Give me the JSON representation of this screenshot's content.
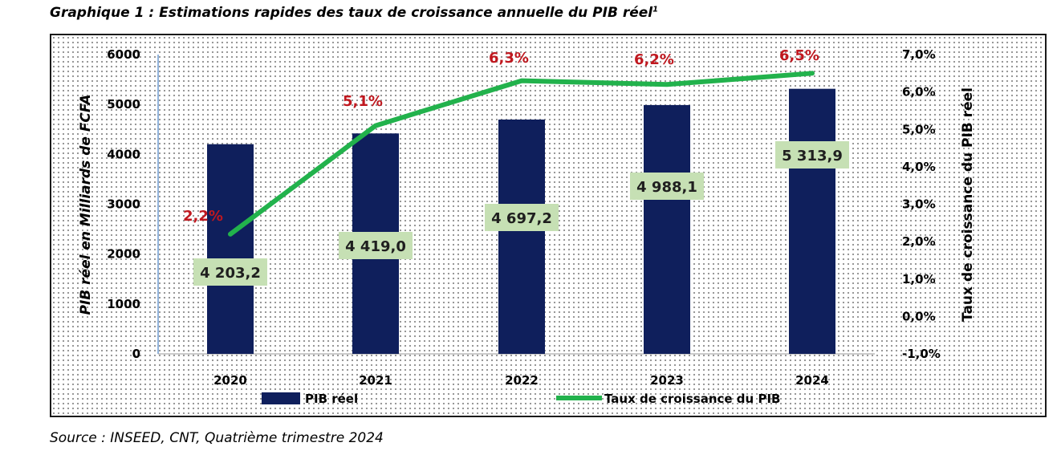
{
  "title": "Graphique 1 : Estimations rapides des taux de croissance annuelle du PIB réel",
  "title_footnote": "1",
  "source": "Source : INSEED, CNT, Quatrième trimestre 2024",
  "colors": {
    "bar": "#0f1f5c",
    "line": "#22b24c",
    "rate_label": "#c0181f",
    "value_box": "#c6e0b4"
  },
  "chart_data": {
    "type": "bar",
    "categories": [
      "2020",
      "2021",
      "2022",
      "2023",
      "2024"
    ],
    "series": [
      {
        "name": "PIB réel",
        "type": "bar",
        "axis": "left",
        "values": [
          4203.2,
          4419.0,
          4697.2,
          4988.1,
          5313.9
        ],
        "labels": [
          "4 203,2",
          "4 419,0",
          "4 697,2",
          "4 988,1",
          "5 313,9"
        ]
      },
      {
        "name": "Taux de croissance du PIB",
        "type": "line",
        "axis": "right",
        "values": [
          2.2,
          5.1,
          6.3,
          6.2,
          6.5
        ],
        "labels": [
          "2,2%",
          "5,1%",
          "6,3%",
          "6,2%",
          "6,5%"
        ]
      }
    ],
    "ylabel": "PIB réel en Milliards de FCFA",
    "y2label": "Taux de croissance du PIB réel",
    "ylim": [
      0,
      6000
    ],
    "y_ticks": [
      "0",
      "1000",
      "2000",
      "3000",
      "4000",
      "5000",
      "6000"
    ],
    "y2lim": [
      -1,
      7
    ],
    "y2_ticks": [
      "-1,0%",
      "0,0%",
      "1,0%",
      "2,0%",
      "3,0%",
      "4,0%",
      "5,0%",
      "6,0%",
      "7,0%"
    ],
    "legend": [
      "PIB réel",
      "Taux de croissance du PIB"
    ],
    "legend_position": "bottom",
    "grid": false
  }
}
